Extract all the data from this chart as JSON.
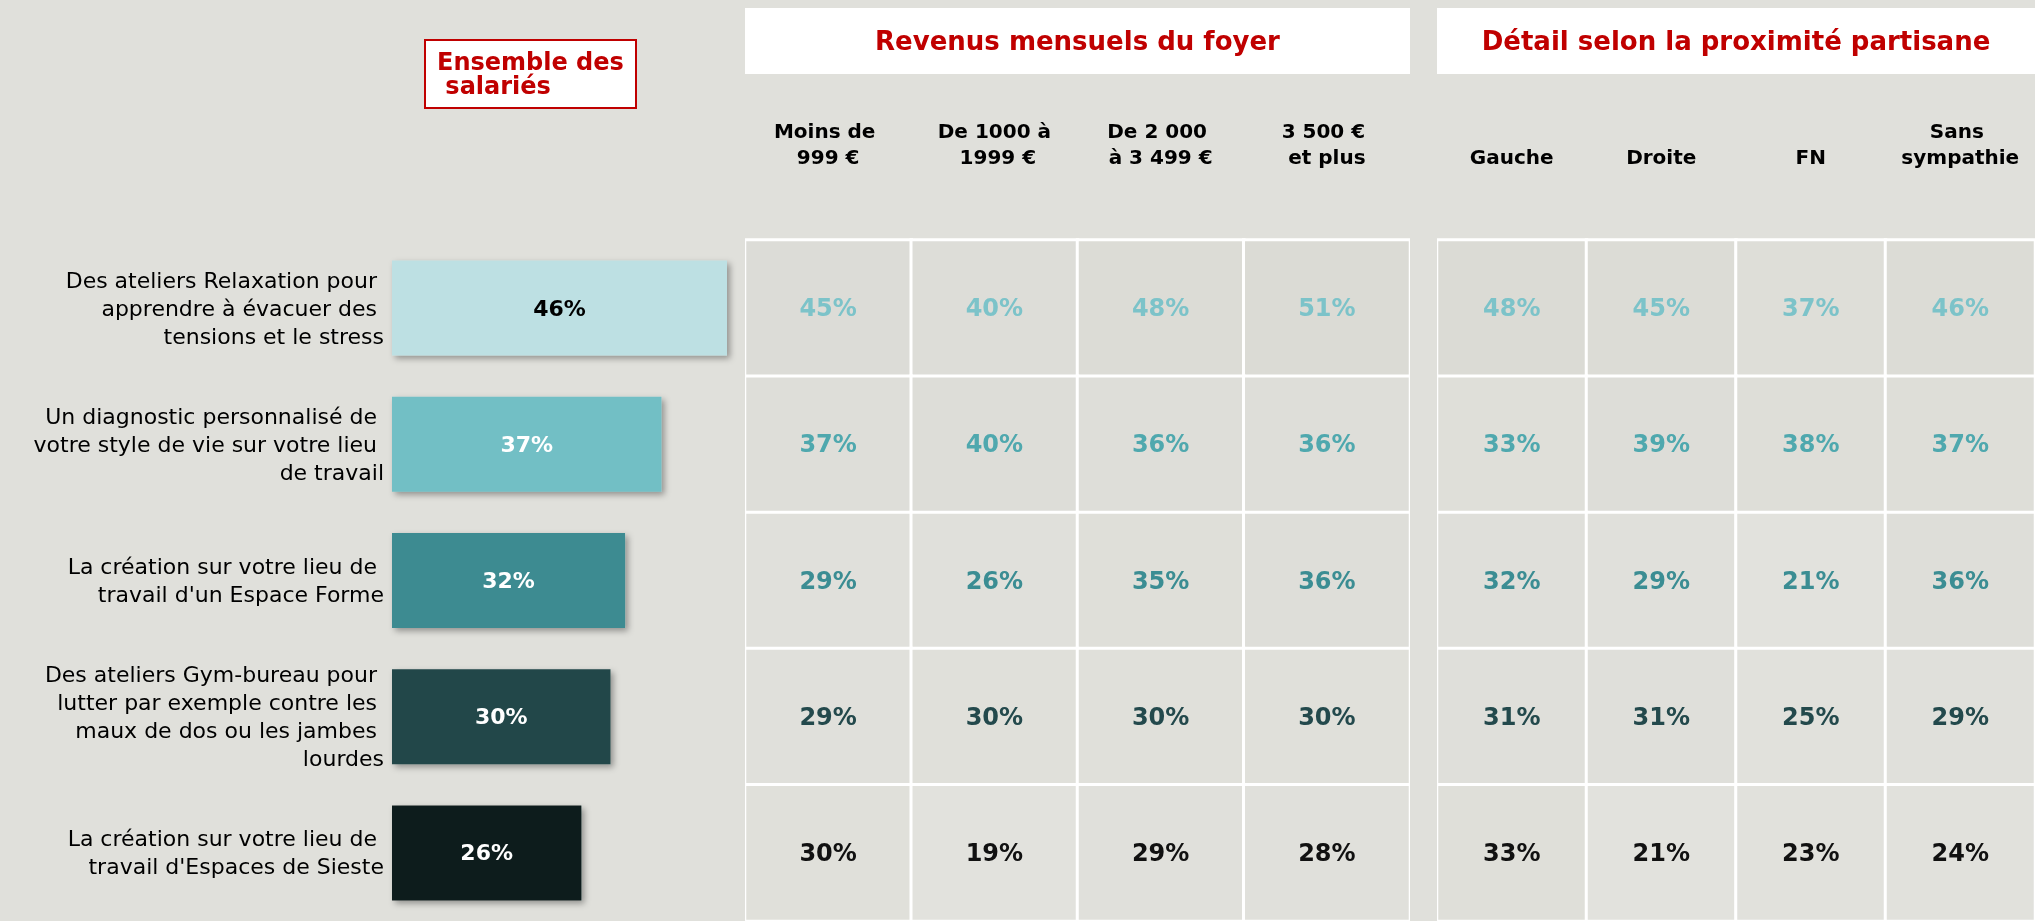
{
  "chart_data": [
    {
      "type": "bar",
      "orientation": "horizontal",
      "title": "Ensemble des salariés",
      "categories": [
        "Des ateliers Relaxation pour apprendre à évacuer des tensions et le stress",
        "Un diagnostic personnalisé de votre style de vie sur votre lieu de travail",
        "La création sur votre lieu de travail d'un Espace Forme",
        "Des ateliers Gym-bureau pour lutter par exemple contre les maux de dos ou les jambes lourdes",
        "La création sur votre lieu de travail d'Espaces de Sieste"
      ],
      "values": [
        46,
        37,
        32,
        30,
        26
      ],
      "colors": [
        "#bde0e3",
        "#72bfc5",
        "#3d8b91",
        "#20474a",
        "#0f1f1f"
      ],
      "value_labels": [
        "46%",
        "37%",
        "32%",
        "30%",
        "26%"
      ],
      "data_labels": true
    },
    {
      "type": "heatmap",
      "title": "Revenus mensuels du foyer",
      "categories": [
        "Moins de 999 €",
        "De 1000 à 1999 €",
        "De 2 000 à 3 499 €",
        "3 500 € et plus"
      ],
      "y_categories": [
        null,
        null,
        null,
        null,
        null
      ],
      "colors": [
        "#7cc3c9",
        "#4fa8ae",
        "#3b8d93",
        "#23494c",
        "#111111"
      ],
      "cells": [
        [
          45,
          40,
          48,
          51
        ],
        [
          37,
          40,
          36,
          36
        ],
        [
          29,
          26,
          35,
          36
        ],
        [
          29,
          30,
          30,
          30
        ],
        [
          30,
          19,
          29,
          28
        ]
      ],
      "cell_labels": [
        [
          "45%",
          "40%",
          "48%",
          "51%"
        ],
        [
          "37%",
          "40%",
          "36%",
          "36%"
        ],
        [
          "29%",
          "26%",
          "35%",
          "36%"
        ],
        [
          "29%",
          "30%",
          "30%",
          "30%"
        ],
        [
          "30%",
          "19%",
          "29%",
          "28%"
        ]
      ]
    },
    {
      "type": "heatmap",
      "title": "Détail selon la proximité partisane",
      "categories": [
        "Gauche",
        "Droite",
        "FN",
        "Sans sympathie"
      ],
      "y_categories": [
        null,
        null,
        null,
        null,
        null
      ],
      "colors": [
        "#7cc3c9",
        "#4fa8ae",
        "#3b8d93",
        "#23494c",
        "#111111"
      ],
      "cells": [
        [
          48,
          45,
          37,
          46
        ],
        [
          33,
          39,
          38,
          37
        ],
        [
          32,
          29,
          21,
          36
        ],
        [
          31,
          31,
          25,
          29
        ],
        [
          33,
          21,
          23,
          24
        ]
      ],
      "cell_labels": [
        [
          "48%",
          "45%",
          "37%",
          "46%"
        ],
        [
          "33%",
          "39%",
          "38%",
          "37%"
        ],
        [
          "32%",
          "29%",
          "21%",
          "36%"
        ],
        [
          "31%",
          "31%",
          "25%",
          "29%"
        ],
        [
          "33%",
          "21%",
          "23%",
          "24%"
        ]
      ]
    }
  ]
}
